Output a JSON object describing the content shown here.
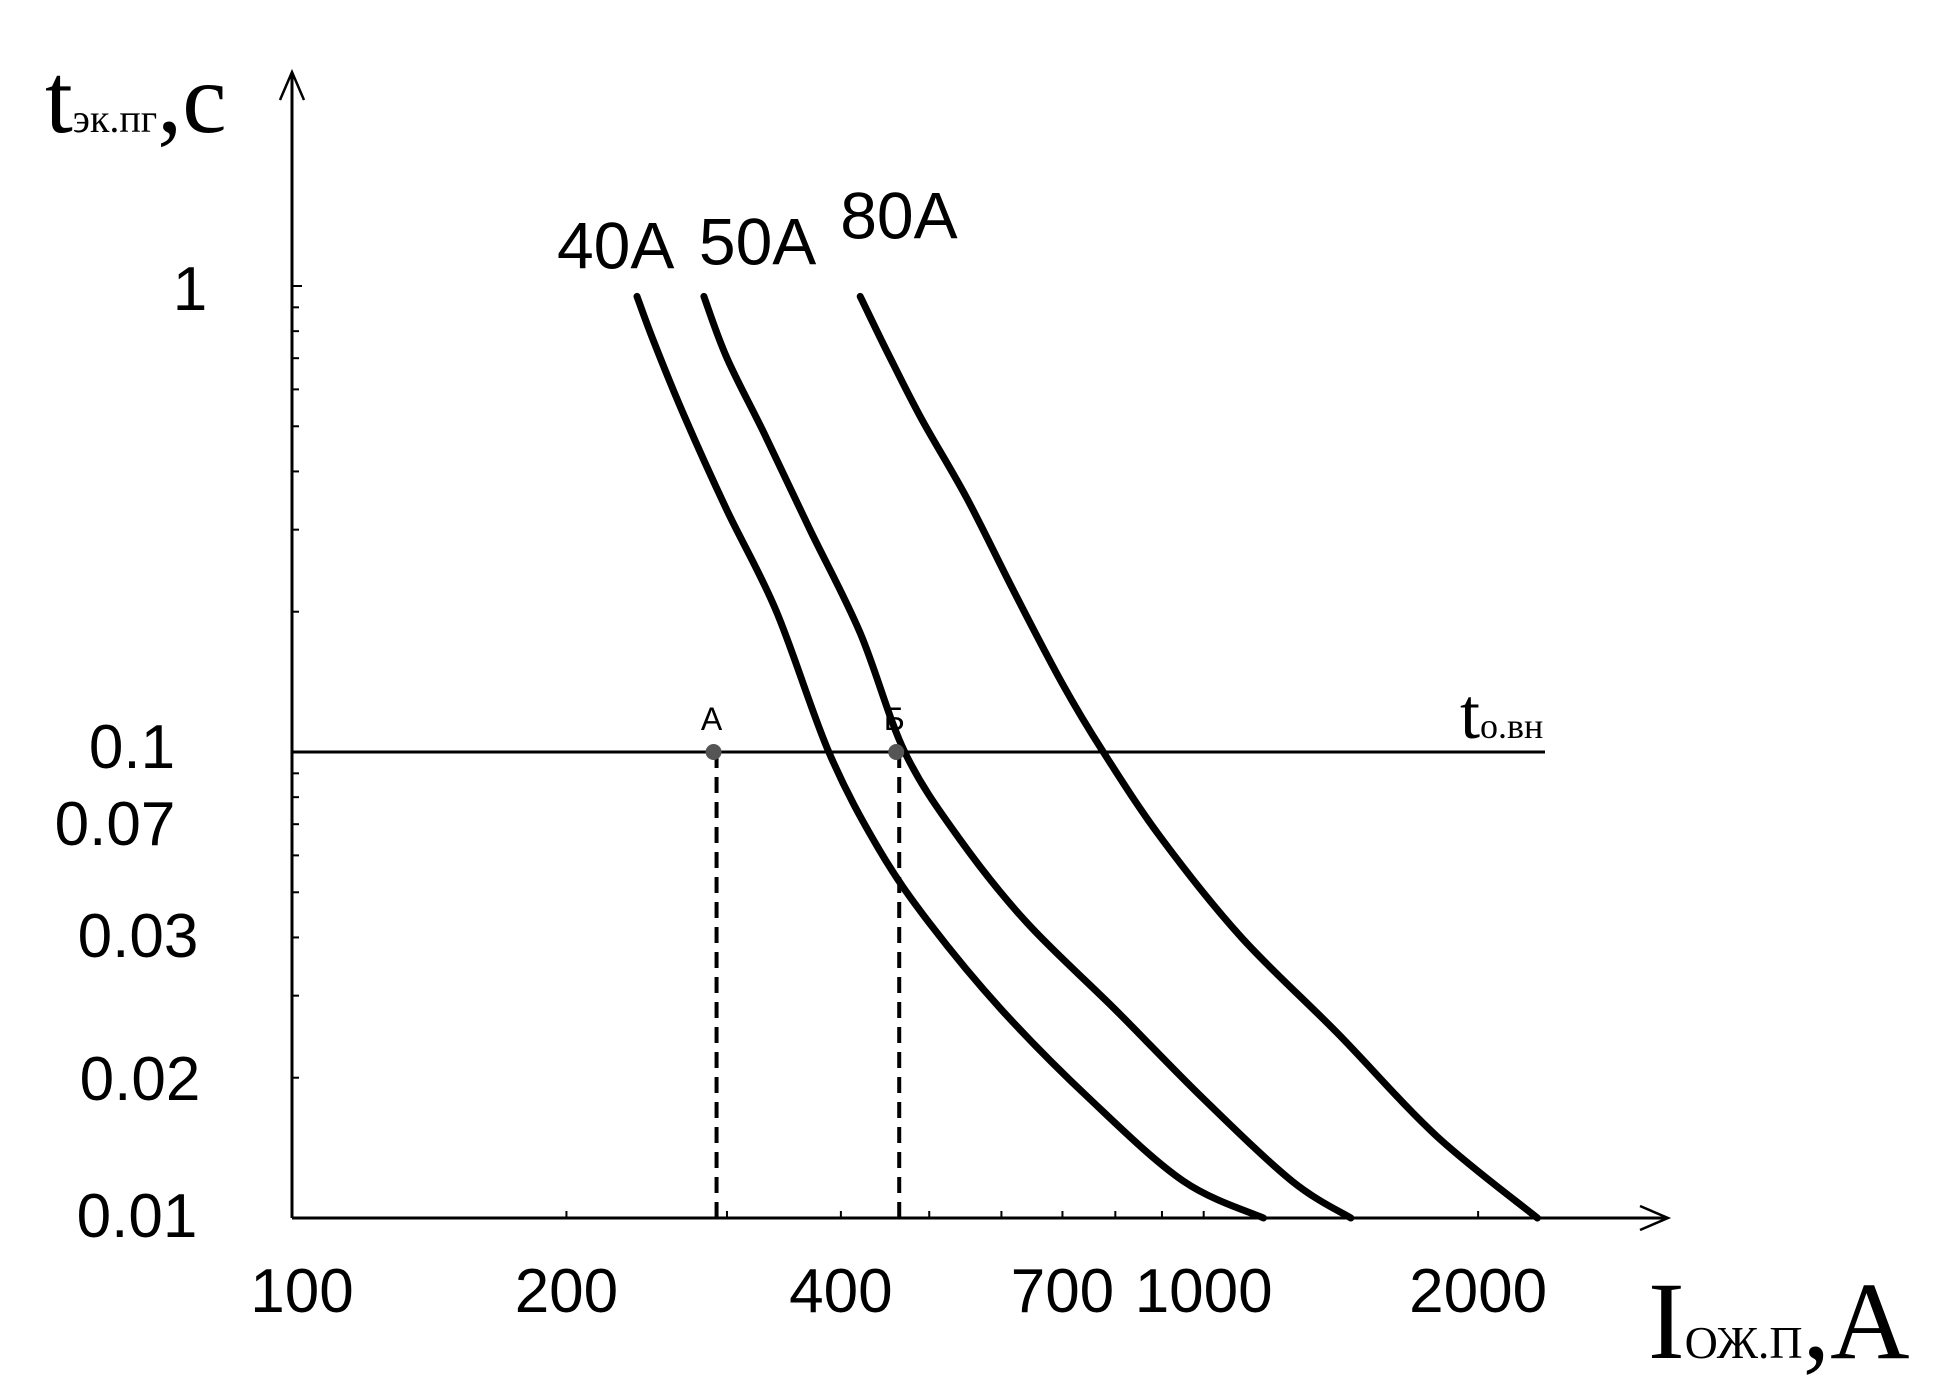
{
  "chart_data": {
    "type": "line",
    "x_scale": "log",
    "y_scale": "log",
    "xlim": [
      100,
      2600
    ],
    "ylim": [
      0.01,
      1.5
    ],
    "y_axis_title": {
      "main": "t",
      "sub": "эк.пг",
      "unit": ",с"
    },
    "x_axis_title": {
      "main": "I",
      "sub": "ОЖ.П",
      "unit": ",А"
    },
    "x_tick_labels": [
      {
        "value": 100,
        "label": "100"
      },
      {
        "value": 200,
        "label": "200"
      },
      {
        "value": 400,
        "label": "400"
      },
      {
        "value": 700,
        "label": "700"
      },
      {
        "value": 1000,
        "label": "1000"
      },
      {
        "value": 2000,
        "label": "2000"
      }
    ],
    "y_tick_labels": [
      {
        "value": 1,
        "label": "1"
      },
      {
        "value": 0.1,
        "label": "0.1"
      },
      {
        "value": 0.07,
        "label": "0.07"
      },
      {
        "value": 0.03,
        "label": "0.03"
      },
      {
        "value": 0.02,
        "label": "0.02"
      },
      {
        "value": 0.01,
        "label": "0.01"
      }
    ],
    "series": [
      {
        "name": "40A",
        "points": [
          [
            239,
            0.95
          ],
          [
            250,
            0.75
          ],
          [
            270,
            0.52
          ],
          [
            300,
            0.33
          ],
          [
            340,
            0.2
          ],
          [
            388,
            0.1
          ],
          [
            440,
            0.062
          ],
          [
            500,
            0.043
          ],
          [
            600,
            0.028
          ],
          [
            750,
            0.018
          ],
          [
            950,
            0.012
          ],
          [
            1163,
            0.01
          ]
        ]
      },
      {
        "name": "50A",
        "points": [
          [
            283,
            0.95
          ],
          [
            300,
            0.7
          ],
          [
            330,
            0.48
          ],
          [
            370,
            0.3
          ],
          [
            420,
            0.18
          ],
          [
            470,
            0.1
          ],
          [
            540,
            0.065
          ],
          [
            640,
            0.043
          ],
          [
            800,
            0.028
          ],
          [
            1000,
            0.018
          ],
          [
            1250,
            0.012
          ],
          [
            1450,
            0.01
          ]
        ]
      },
      {
        "name": "80A",
        "points": [
          [
            420,
            0.95
          ],
          [
            450,
            0.72
          ],
          [
            490,
            0.52
          ],
          [
            550,
            0.35
          ],
          [
            620,
            0.22
          ],
          [
            700,
            0.14
          ],
          [
            776,
            0.1
          ],
          [
            900,
            0.065
          ],
          [
            1100,
            0.04
          ],
          [
            1400,
            0.025
          ],
          [
            1800,
            0.015
          ],
          [
            2323,
            0.01
          ]
        ]
      }
    ],
    "reference_line": {
      "label_main": "t",
      "label_sub": "о.вн",
      "y": 0.1
    },
    "markers": [
      {
        "label": "А",
        "x": 290,
        "y": 0.1
      },
      {
        "label": "Б",
        "x": 460,
        "y": 0.1
      }
    ],
    "grid": false,
    "legend": "none"
  }
}
